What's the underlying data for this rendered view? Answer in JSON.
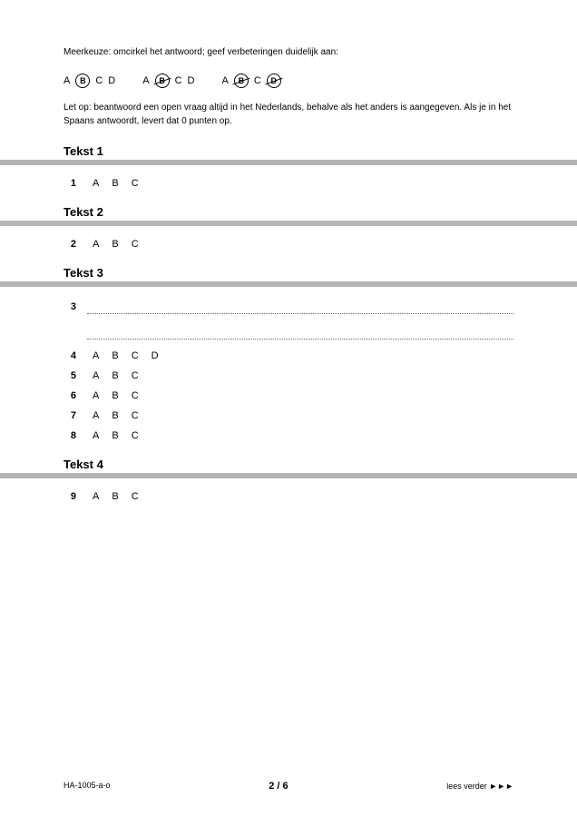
{
  "instructions": {
    "line1": "Meerkeuze: omcirkel het antwoord; geef verbeteringen duidelijk aan:",
    "note": "Let op: beantwoord een open vraag altijd in het Nederlands, behalve als het anders is aangegeven. Als je in het Spaans antwoordt, levert dat 0 punten op."
  },
  "examples": [
    {
      "letters": [
        "A",
        "B",
        "C",
        "D"
      ],
      "circled": 1,
      "strike": []
    },
    {
      "letters": [
        "A",
        "B",
        "C",
        "D"
      ],
      "circled": -1,
      "strike": [
        1
      ],
      "arrow": "B"
    },
    {
      "letters": [
        "A",
        "B",
        "C",
        "D"
      ],
      "circled": -1,
      "strike": [
        1,
        3
      ],
      "arrow": "D"
    }
  ],
  "sections": [
    {
      "title": "Tekst 1",
      "questions": [
        {
          "num": "1",
          "type": "mc",
          "letters": [
            "A",
            "B",
            "C"
          ]
        }
      ]
    },
    {
      "title": "Tekst 2",
      "questions": [
        {
          "num": "2",
          "type": "mc",
          "letters": [
            "A",
            "B",
            "C"
          ]
        }
      ]
    },
    {
      "title": "Tekst 3",
      "questions": [
        {
          "num": "3",
          "type": "open",
          "lines": 2
        },
        {
          "num": "4",
          "type": "mc",
          "letters": [
            "A",
            "B",
            "C",
            "D"
          ]
        },
        {
          "num": "5",
          "type": "mc",
          "letters": [
            "A",
            "B",
            "C"
          ]
        },
        {
          "num": "6",
          "type": "mc",
          "letters": [
            "A",
            "B",
            "C"
          ]
        },
        {
          "num": "7",
          "type": "mc",
          "letters": [
            "A",
            "B",
            "C"
          ]
        },
        {
          "num": "8",
          "type": "mc",
          "letters": [
            "A",
            "B",
            "C"
          ]
        }
      ]
    },
    {
      "title": "Tekst 4",
      "questions": [
        {
          "num": "9",
          "type": "mc",
          "letters": [
            "A",
            "B",
            "C"
          ]
        }
      ]
    }
  ],
  "footer": {
    "left": "HA-1005-a-o",
    "center": "2 / 6",
    "right": "lees verder ►►►"
  },
  "colors": {
    "gray_bar": "#b4b4b4",
    "text": "#000000",
    "background": "#ffffff",
    "dotted": "#666666"
  }
}
